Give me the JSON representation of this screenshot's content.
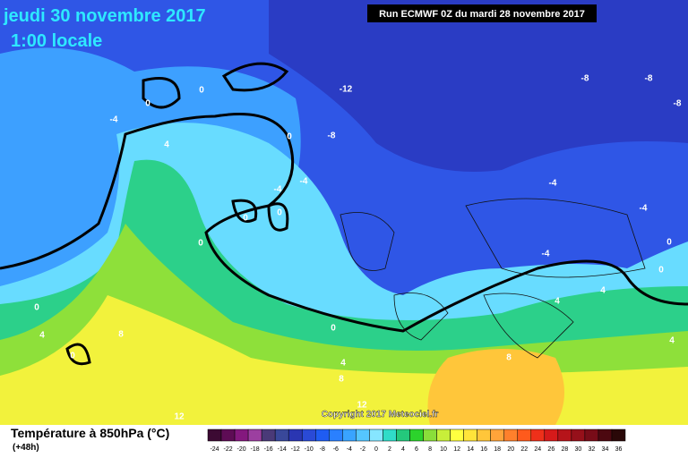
{
  "header": {
    "date": "jeudi 30 novembre 2017",
    "time": "1:00 locale",
    "run": "Run ECMWF 0Z du mardi 28 novembre 2017"
  },
  "footer": {
    "title": "Température à 850hPa (°C)",
    "lead": "(+48h)",
    "copyright": "Copyright 2017 Meteociel.fr"
  },
  "legend": {
    "ticks": [
      -24,
      -22,
      -20,
      -18,
      -16,
      -14,
      -12,
      -10,
      -8,
      -6,
      -4,
      -2,
      0,
      2,
      4,
      6,
      8,
      10,
      12,
      14,
      16,
      18,
      20,
      22,
      24,
      26,
      28,
      30,
      32,
      34,
      36
    ],
    "colors": [
      "#3c0a33",
      "#5e0c55",
      "#84187e",
      "#9c3fa0",
      "#4a3a78",
      "#39489a",
      "#2a36b2",
      "#2a4ad6",
      "#1f5cf2",
      "#2a80ff",
      "#39a4ff",
      "#55c6ff",
      "#86e6ff",
      "#30dcc8",
      "#24c87c",
      "#2cd22c",
      "#8ade3a",
      "#c8ef3a",
      "#ffff40",
      "#ffe43a",
      "#ffc63a",
      "#ffa43a",
      "#ff802c",
      "#ff5a1c",
      "#ee301a",
      "#d61a1a",
      "#b6141a",
      "#96101a",
      "#780c18",
      "#4c0810",
      "#2a0808"
    ]
  },
  "contour_labels": [
    "-12",
    "-8",
    "-8",
    "-8",
    "-8",
    "-4",
    "-4",
    "-4",
    "-4",
    "-4",
    "-4",
    "0",
    "0",
    "0",
    "0",
    "0",
    "0",
    "0",
    "0",
    "0",
    "0",
    "0",
    "4",
    "4",
    "4",
    "4",
    "4",
    "4",
    "8",
    "8",
    "8",
    "12",
    "12"
  ]
}
